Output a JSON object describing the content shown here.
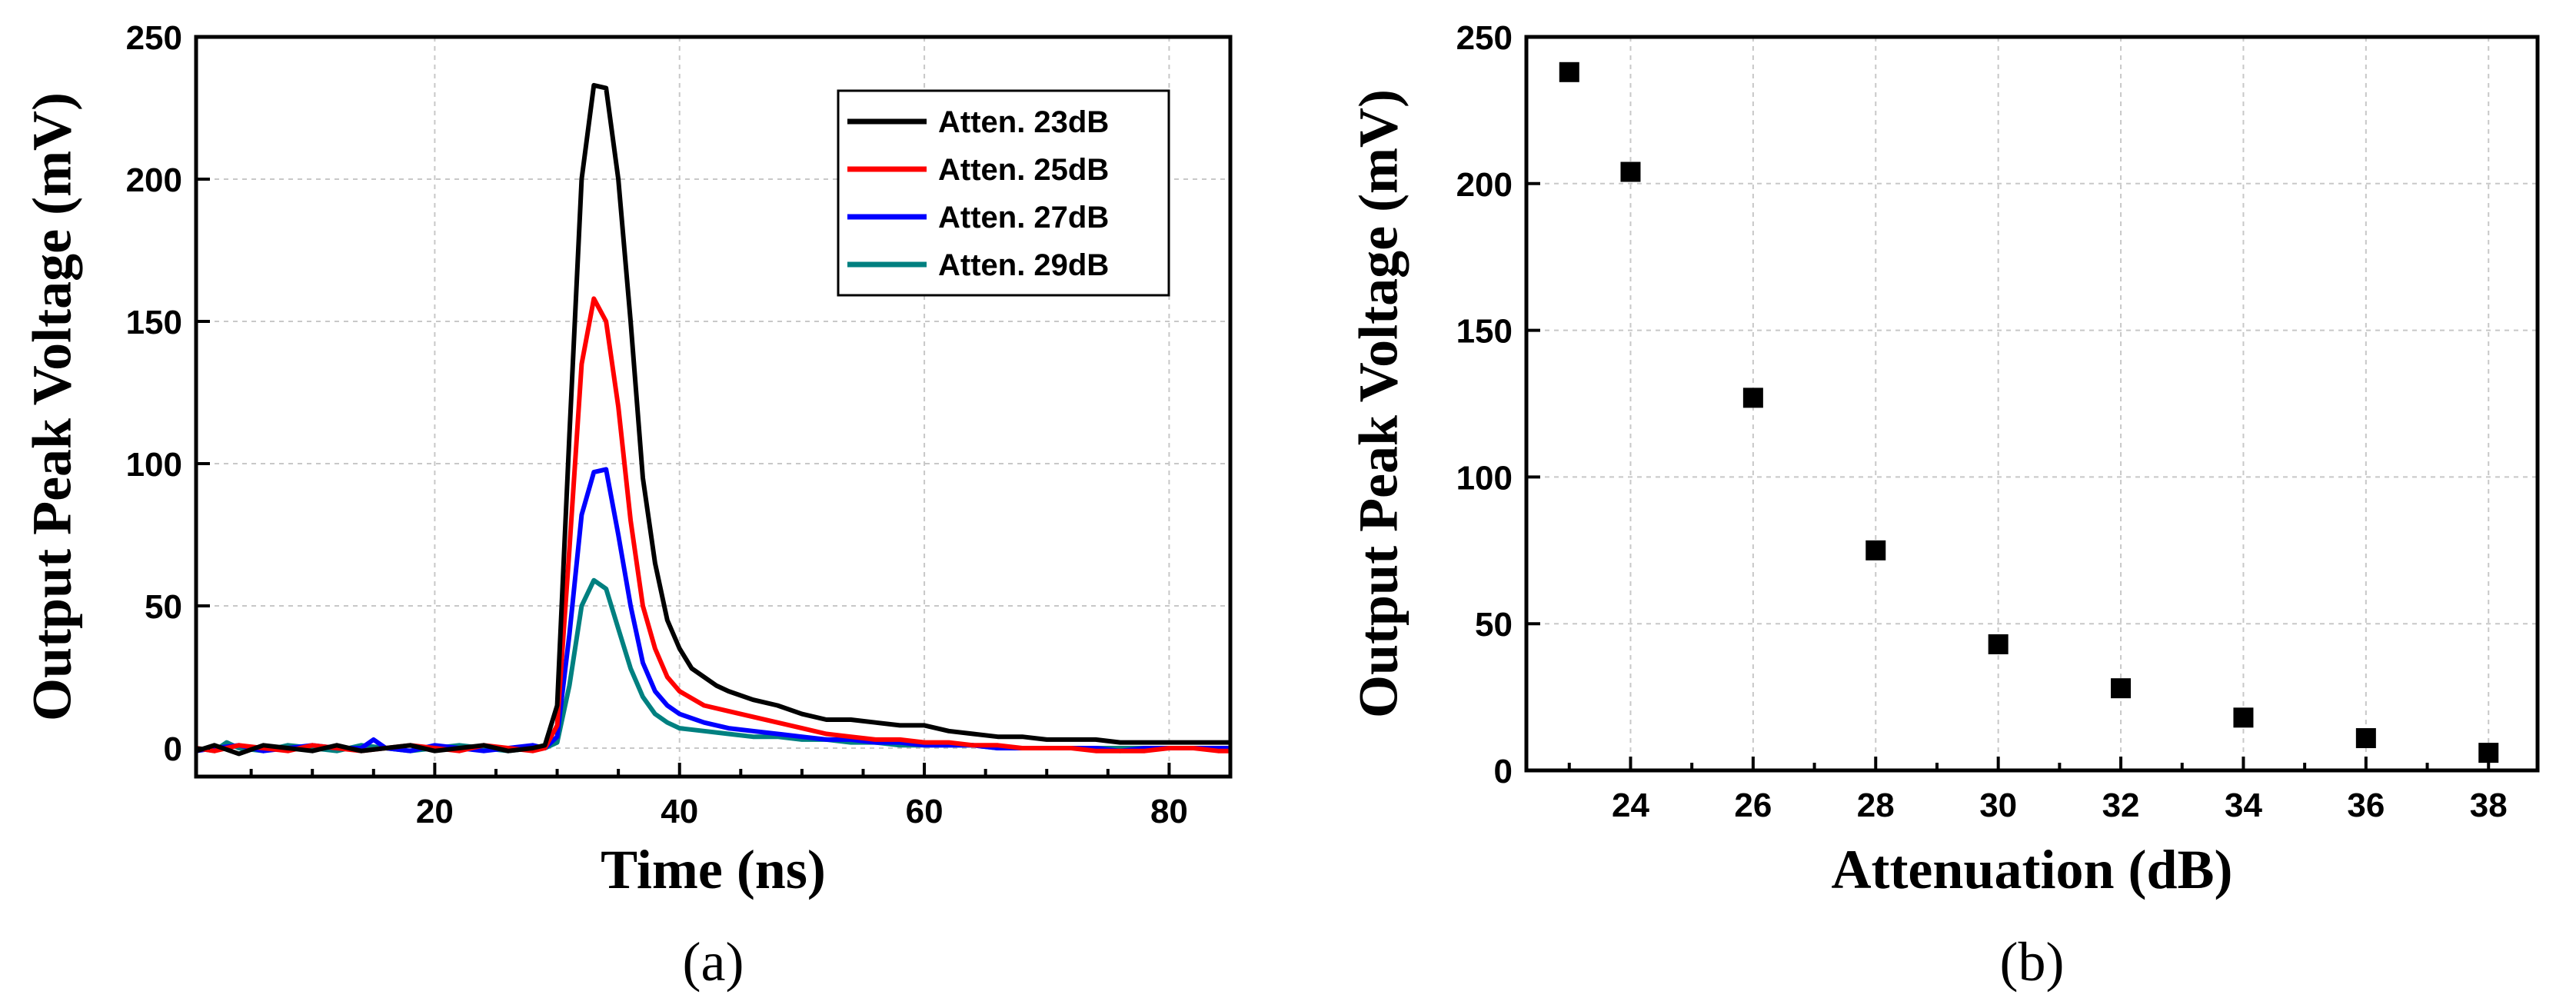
{
  "chart_data": [
    {
      "type": "line",
      "panel_label": "(a)",
      "xlabel": "Time (ns)",
      "ylabel": "Output Peak Voltage (mV)",
      "xlim": [
        0.5,
        85
      ],
      "ylim": [
        -10,
        250
      ],
      "xticks": [
        20,
        40,
        60,
        80
      ],
      "yticks": [
        0,
        50,
        100,
        150,
        200,
        250
      ],
      "grid": true,
      "legend_position": "top-right",
      "series": [
        {
          "name": "Atten. 23dB",
          "color": "#000000",
          "x": [
            0.5,
            2,
            4,
            6,
            8,
            10,
            12,
            14,
            16,
            18,
            20,
            22,
            24,
            26,
            28,
            29,
            30,
            31,
            32,
            33,
            34,
            35,
            36,
            37,
            38,
            39,
            40,
            41,
            42,
            43,
            44,
            46,
            48,
            50,
            52,
            54,
            56,
            58,
            60,
            62,
            64,
            66,
            68,
            70,
            72,
            74,
            76,
            78,
            80,
            82,
            84,
            85
          ],
          "y": [
            -1,
            1,
            -2,
            1,
            0,
            -1,
            1,
            -1,
            0,
            1,
            -1,
            0,
            1,
            -1,
            0,
            1,
            15,
            110,
            200,
            233,
            232,
            200,
            150,
            95,
            65,
            45,
            35,
            28,
            25,
            22,
            20,
            17,
            15,
            12,
            10,
            10,
            9,
            8,
            8,
            6,
            5,
            4,
            4,
            3,
            3,
            3,
            2,
            2,
            2,
            2,
            2,
            2
          ]
        },
        {
          "name": "Atten. 25dB",
          "color": "#ff0000",
          "x": [
            0.5,
            2,
            4,
            6,
            8,
            10,
            12,
            14,
            16,
            18,
            20,
            22,
            24,
            26,
            28,
            29,
            30,
            31,
            32,
            33,
            34,
            35,
            36,
            37,
            38,
            39,
            40,
            42,
            44,
            46,
            48,
            50,
            52,
            54,
            56,
            58,
            60,
            62,
            64,
            66,
            68,
            70,
            72,
            74,
            76,
            78,
            80,
            82,
            84,
            85
          ],
          "y": [
            0,
            -1,
            1,
            0,
            -1,
            1,
            0,
            -1,
            0,
            1,
            0,
            -1,
            1,
            0,
            -1,
            0,
            8,
            70,
            135,
            158,
            150,
            120,
            80,
            50,
            35,
            25,
            20,
            15,
            13,
            11,
            9,
            7,
            5,
            4,
            3,
            3,
            2,
            2,
            1,
            1,
            0,
            0,
            0,
            -1,
            -1,
            -1,
            0,
            0,
            -1,
            -1
          ]
        },
        {
          "name": "Atten. 27dB",
          "color": "#0000ff",
          "x": [
            0.5,
            2,
            4,
            6,
            8,
            10,
            12,
            14,
            15,
            16,
            18,
            20,
            22,
            24,
            26,
            28,
            29,
            30,
            31,
            32,
            33,
            34,
            35,
            36,
            37,
            38,
            39,
            40,
            42,
            44,
            46,
            48,
            50,
            52,
            54,
            56,
            58,
            60,
            62,
            64,
            66,
            68,
            70,
            72,
            74,
            76,
            78,
            80,
            82,
            84,
            85
          ],
          "y": [
            -1,
            0,
            1,
            -1,
            0,
            1,
            0,
            0,
            3,
            0,
            -1,
            1,
            0,
            -1,
            0,
            1,
            0,
            4,
            40,
            82,
            97,
            98,
            75,
            50,
            30,
            20,
            15,
            12,
            9,
            7,
            6,
            5,
            4,
            3,
            3,
            2,
            2,
            1,
            1,
            1,
            0,
            0,
            0,
            0,
            0,
            -1,
            0,
            0,
            0,
            0,
            0
          ]
        },
        {
          "name": "Atten. 29dB",
          "color": "#008080",
          "x": [
            0.5,
            2,
            3,
            4,
            6,
            8,
            10,
            12,
            14,
            16,
            18,
            20,
            22,
            24,
            26,
            28,
            29,
            30,
            31,
            32,
            33,
            34,
            35,
            36,
            37,
            38,
            39,
            40,
            42,
            44,
            46,
            48,
            50,
            52,
            54,
            56,
            58,
            60,
            62,
            64,
            66,
            68,
            70,
            72,
            74,
            76,
            78,
            80,
            82,
            84,
            85
          ],
          "y": [
            0,
            -1,
            2,
            0,
            -1,
            1,
            0,
            -1,
            1,
            0,
            -1,
            0,
            1,
            0,
            -1,
            0,
            0,
            2,
            22,
            50,
            59,
            56,
            42,
            28,
            18,
            12,
            9,
            7,
            6,
            5,
            4,
            4,
            3,
            3,
            2,
            2,
            1,
            1,
            1,
            1,
            0,
            0,
            0,
            0,
            0,
            0,
            0,
            0,
            0,
            0,
            0
          ]
        }
      ]
    },
    {
      "type": "scatter",
      "panel_label": "(b)",
      "xlabel": "Attenuation (dB)",
      "ylabel": "Output Peak Voltage (mV)",
      "xlim": [
        22.3,
        38.8
      ],
      "ylim": [
        0,
        250
      ],
      "xticks": [
        24,
        26,
        28,
        30,
        32,
        34,
        36,
        38
      ],
      "yticks": [
        0,
        50,
        100,
        150,
        200,
        250
      ],
      "grid": true,
      "marker": "square",
      "color": "#000000",
      "x": [
        23,
        24,
        26,
        28,
        30,
        32,
        34,
        36,
        38
      ],
      "y": [
        238,
        204,
        127,
        75,
        43,
        28,
        18,
        11,
        6
      ]
    }
  ]
}
